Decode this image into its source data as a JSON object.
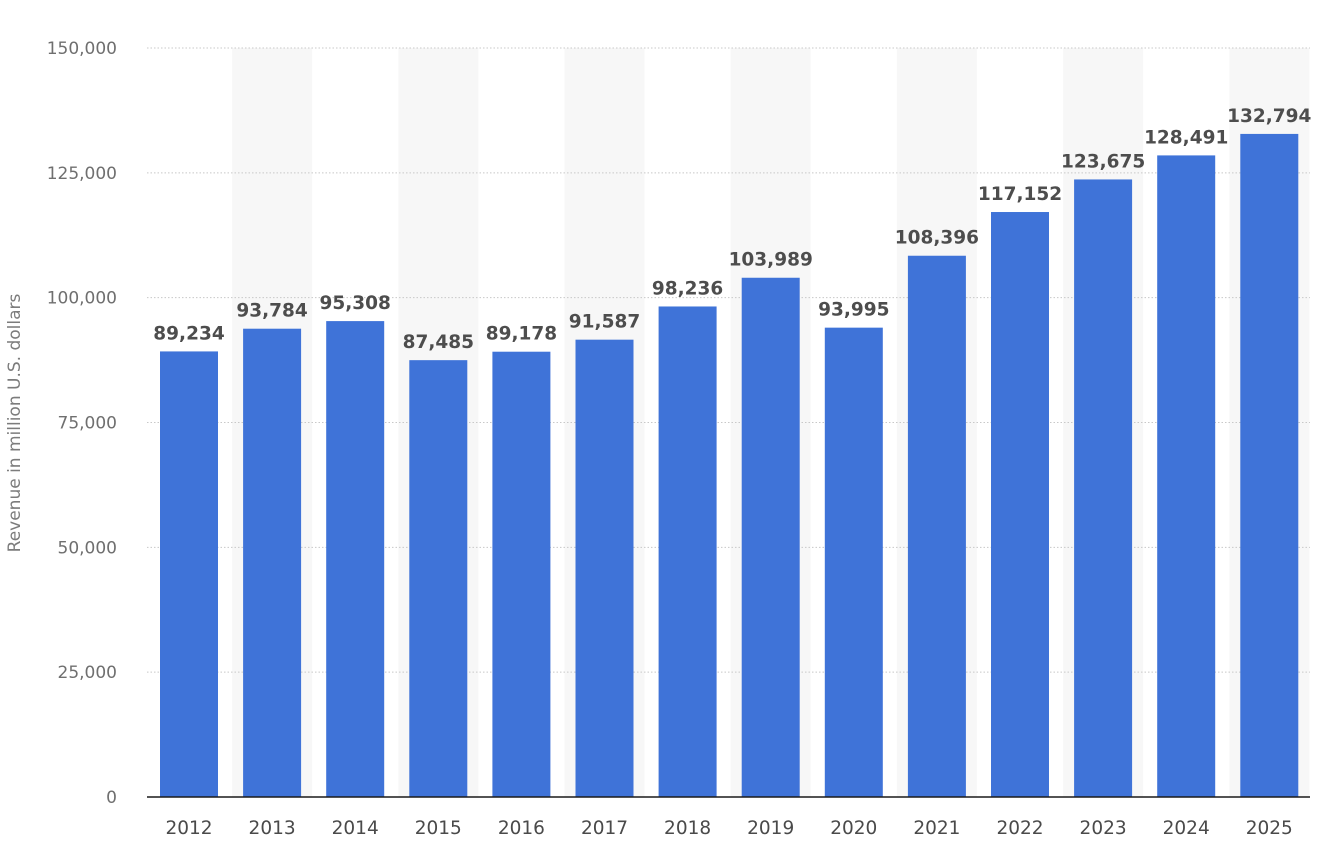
{
  "chart_data": {
    "type": "bar",
    "title": "",
    "xlabel": "",
    "ylabel": "Revenue in million U.S. dollars",
    "ylim": [
      0,
      150000
    ],
    "yticks": [
      0,
      25000,
      50000,
      75000,
      100000,
      125000,
      150000
    ],
    "ytick_labels": [
      "0",
      "25,000",
      "50,000",
      "75,000",
      "100,000",
      "125,000",
      "150,000"
    ],
    "grid": true,
    "categories": [
      "2012",
      "2013",
      "2014",
      "2015",
      "2016",
      "2017",
      "2018",
      "2019",
      "2020",
      "2021",
      "2022",
      "2023",
      "2024",
      "2025"
    ],
    "values": [
      89234,
      93784,
      95308,
      87485,
      89178,
      91587,
      98236,
      103989,
      93995,
      108396,
      117152,
      123675,
      128491,
      132794
    ],
    "value_labels": [
      "89,234",
      "93,784",
      "95,308",
      "87,485",
      "89,178",
      "91,587",
      "98,236",
      "103,989",
      "93,995",
      "108,396",
      "117,152",
      "123,675",
      "128,491",
      "132,794"
    ],
    "colors": {
      "bar": "#3f73d8",
      "band": "#f7f7f7"
    }
  }
}
